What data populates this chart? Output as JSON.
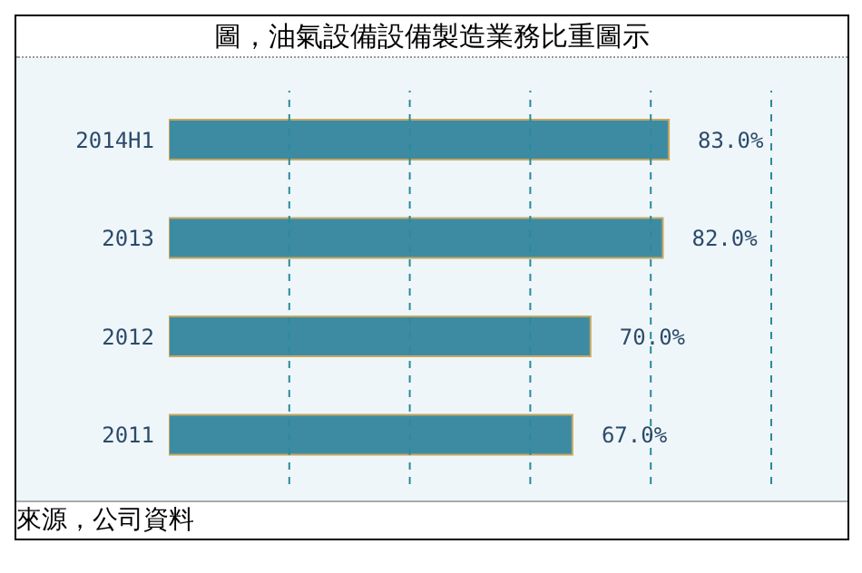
{
  "chart_data": {
    "type": "bar",
    "orientation": "horizontal",
    "title": "圖，油氣設備設備製造業務比重圖示",
    "categories": [
      "2014H1",
      "2013",
      "2012",
      "2011"
    ],
    "values": [
      83,
      82,
      70,
      67
    ],
    "value_labels": [
      "83.0%",
      "82.0%",
      "70.0%",
      "67.0%"
    ],
    "color": "#3d8ba3",
    "xlim": [
      0,
      100
    ],
    "xticks": [
      {
        "value": 20,
        "label": null
      },
      {
        "value": 40,
        "label": null
      },
      {
        "value": 60,
        "label": null
      },
      {
        "value": 80,
        "label": null
      },
      {
        "value": 100,
        "label": null
      }
    ],
    "tick_labels": "y",
    "grid": "x",
    "legend": false,
    "annotations": [
      "來源，公司資料"
    ]
  }
}
